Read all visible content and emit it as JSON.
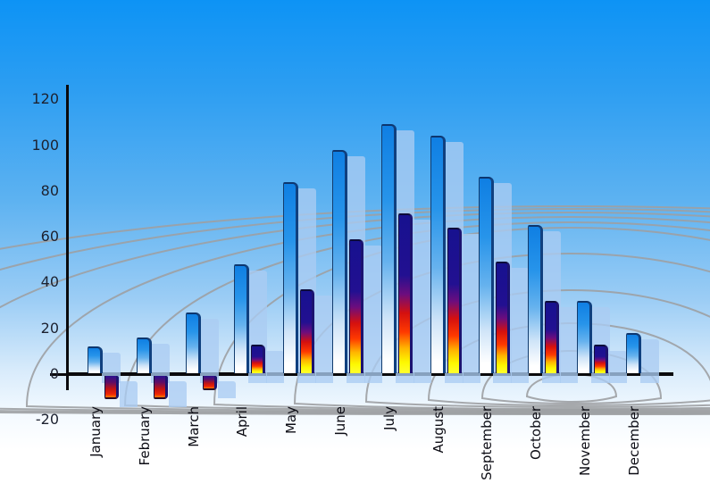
{
  "chart_data": {
    "type": "bar",
    "title": "",
    "categories": [
      "January",
      "February",
      "March",
      "April",
      "May",
      "June",
      "July",
      "August",
      "September",
      "October",
      "November",
      "December"
    ],
    "series": [
      {
        "name": "blue-bars",
        "values": [
          12,
          16,
          27,
          48,
          84,
          98,
          109,
          104,
          86,
          65,
          32,
          18
        ]
      },
      {
        "name": "flame-bars",
        "values": [
          -11,
          -11,
          -7,
          13,
          37,
          59,
          70,
          64,
          49,
          32,
          13,
          null
        ]
      }
    ],
    "yticks": [
      120,
      100,
      80,
      60,
      40,
      20,
      0,
      -20
    ],
    "ylim": [
      -20,
      120
    ],
    "xlabel": "",
    "ylabel": "",
    "legend": "none",
    "grid": "decorative perspective wireframe mesh behind bars",
    "bar_style": "3d beveled bars with translucent light-blue drop shadows offset right and down",
    "colors": {
      "sky_top": "#0d93f5",
      "sky_bottom": "#ffffff",
      "bar_blue_top": "#0f7fe3",
      "bar_blue_bottom": "#ffffff",
      "flame_navy": "#17118f",
      "flame_red": "#d5100f",
      "flame_yellow": "#fdf800",
      "shadow_blue": "#abccf2",
      "mesh_gray": "#9da0a3",
      "axis_black": "#0a0a0c",
      "tick_text": "#1d2230",
      "label_text": "#0c0c14"
    }
  }
}
